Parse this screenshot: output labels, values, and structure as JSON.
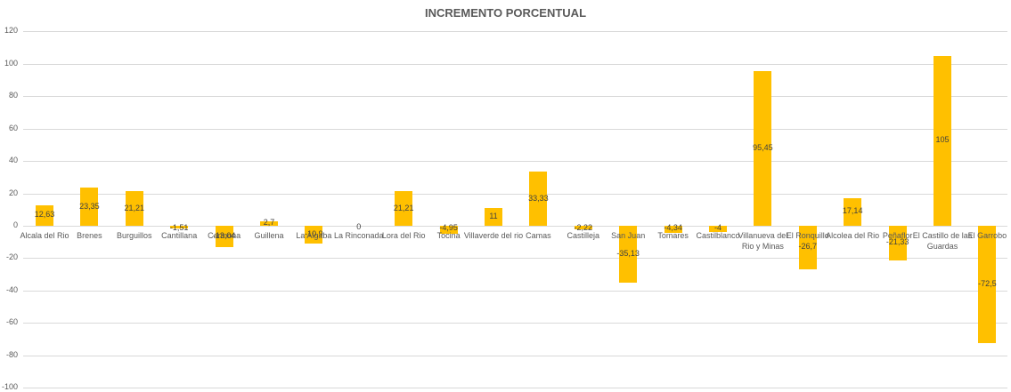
{
  "chart_data": {
    "type": "bar",
    "title": "INCREMENTO PORCENTUAL",
    "xlabel": "",
    "ylabel": "",
    "ylim": [
      -100,
      120
    ],
    "yticks": [
      120,
      100,
      80,
      60,
      40,
      20,
      0,
      -20,
      -40,
      -60,
      -80,
      -100
    ],
    "grid": true,
    "legend": "none",
    "bar_color": "#ffc000",
    "categories": [
      "Alcala del Rio",
      "Brenes",
      "Burguillos",
      "Cantillana",
      "Carmona",
      "Guillena",
      "La Algaba",
      "La Rinconada",
      "Lora del Rio",
      "Tocina",
      "Villaverde del rio",
      "Camas",
      "Castilleja",
      "San Juan",
      "Tomares",
      "Castilblanco",
      "Villanueva del Rio y Minas",
      "El Ronquillo",
      "Alcolea del Rio",
      "Peñaflor",
      "El Castillo de las Guardas",
      "El Garrobo"
    ],
    "values": [
      12.63,
      23.35,
      21.21,
      -1.51,
      -13.04,
      2.7,
      -10.9,
      0,
      21.21,
      -4.95,
      11,
      33.33,
      -2.22,
      -35.13,
      -4.34,
      -4,
      95.45,
      -26.7,
      17.14,
      -21.33,
      105,
      -72.5
    ],
    "data_labels": [
      "12,63",
      "23,35",
      "21,21",
      "-1,51",
      "-13,04",
      "2,7",
      "-10,9",
      "0",
      "21,21",
      "-4,95",
      "11",
      "33,33",
      "-2,22",
      "-35,13",
      "-4,34",
      "-4",
      "95,45",
      "-26,7",
      "17,14",
      "-21,33",
      "105",
      "-72,5"
    ]
  }
}
